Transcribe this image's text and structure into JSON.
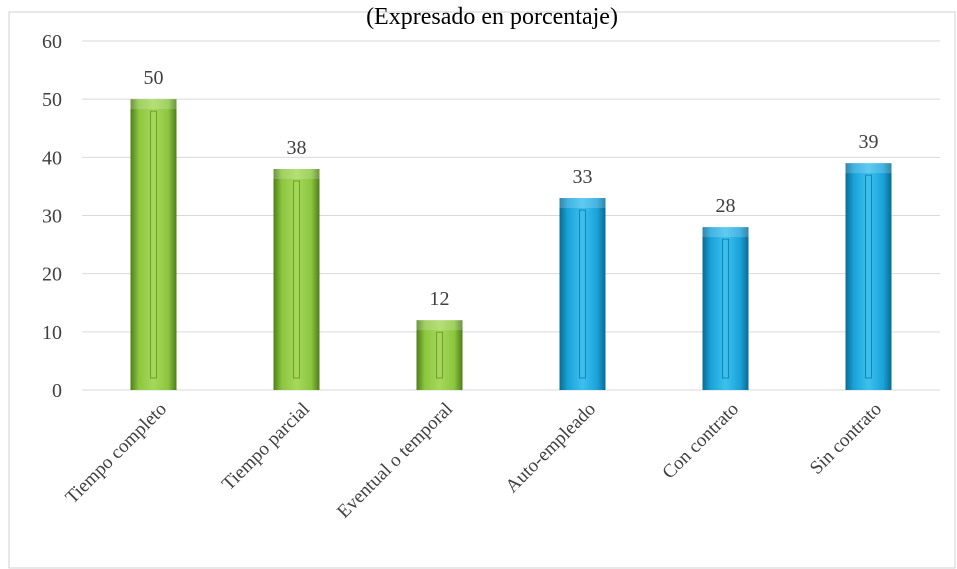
{
  "chart_data": {
    "type": "bar",
    "title": "(Expresado en porcentaje)",
    "xlabel": "",
    "ylabel": "",
    "categories": [
      "Tiempo completo",
      "Tiempo parcial",
      "Eventual o temporal",
      "Auto-empleado",
      "Con contrato",
      "Sin contrato"
    ],
    "values": [
      50,
      38,
      12,
      33,
      28,
      39
    ],
    "data_labels": [
      "50",
      "38",
      "12",
      "33",
      "28",
      "39"
    ],
    "bar_colors": [
      "#8cc63f",
      "#8cc63f",
      "#8cc63f",
      "#1aa3d9",
      "#1aa3d9",
      "#1aa3d9"
    ],
    "ylim": [
      0,
      60
    ],
    "yticks": [
      0,
      10,
      20,
      30,
      40,
      50,
      60
    ],
    "grid": true,
    "legend": "none"
  },
  "colors": {
    "green": "#8cc63f",
    "green_dark": "#5a8a1e",
    "blue": "#1aa3d9",
    "blue_dark": "#0b6f99",
    "grid": "#d9d9d9",
    "frame": "#d0d0d0"
  }
}
